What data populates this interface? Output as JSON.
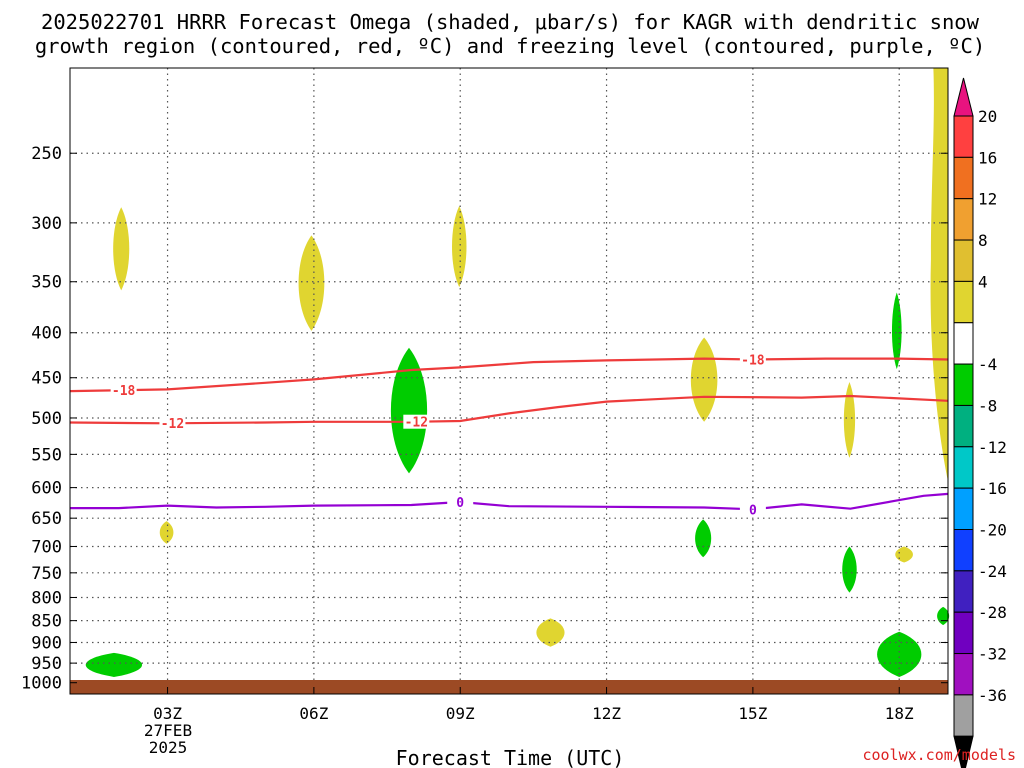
{
  "title_line1": "2025022701 HRRR Forecast Omega (shaded, μbar/s) for KAGR with dendritic snow",
  "title_line2": "growth region (contoured, red, ºC) and freezing level (contoured, purple, ºC)",
  "credit": "coolwx.com/models",
  "colors": {
    "ground": "#9c4a24",
    "red_contour": "#ee3b3b",
    "purple_contour": "#9400d3",
    "rising_green": "#00cc00",
    "sinking_yellow": "#e0d530",
    "grid": "#555555"
  },
  "chart_data": {
    "type": "time-height cross section",
    "xlabel": "Forecast Time (UTC)",
    "x_ticks": [
      "03Z",
      "06Z",
      "09Z",
      "12Z",
      "15Z",
      "18Z"
    ],
    "x_tick_hours": [
      3,
      6,
      9,
      12,
      15,
      18
    ],
    "x_range_hours": [
      1,
      19
    ],
    "x_date_labels": [
      "27FEB",
      "2025"
    ],
    "ylabel": "",
    "y_ticks": [
      250,
      300,
      350,
      400,
      450,
      500,
      550,
      600,
      650,
      700,
      750,
      800,
      850,
      900,
      950,
      1000
    ],
    "y_range_hpa": [
      200,
      1030
    ],
    "y_scale": "log-pressure",
    "grid": true,
    "colorbar": {
      "units": "μbar/s",
      "labels": [
        "20",
        "16",
        "12",
        "8",
        "4",
        "-4",
        "-8",
        "-12",
        "-16",
        "-20",
        "-24",
        "-28",
        "-32",
        "-36"
      ],
      "colors": [
        "#e8137f",
        "#ff4040",
        "#f07020",
        "#f0a030",
        "#e0bf30",
        "#e0d530",
        "#ffffff",
        "#00cc00",
        "#00b080",
        "#00c8c8",
        "#00a0ff",
        "#1040ff",
        "#4020c0",
        "#7000c0",
        "#a010c0",
        "#a0a0a0",
        "#000000"
      ]
    },
    "contours": [
      {
        "label": "-18",
        "color": "red",
        "points": [
          [
            1.0,
            466
          ],
          [
            3.0,
            464
          ],
          [
            5.0,
            456
          ],
          [
            6.0,
            452
          ],
          [
            8.0,
            441
          ],
          [
            9.0,
            438
          ],
          [
            10.5,
            432
          ],
          [
            12.0,
            430
          ],
          [
            14.0,
            428
          ],
          [
            15.0,
            429
          ],
          [
            16.5,
            428
          ],
          [
            18.0,
            428
          ],
          [
            19.0,
            429
          ]
        ],
        "label_hours": [
          2.1,
          15.0
        ]
      },
      {
        "label": "-12",
        "color": "red",
        "points": [
          [
            1.0,
            506
          ],
          [
            3.0,
            507
          ],
          [
            5.0,
            506
          ],
          [
            6.0,
            505
          ],
          [
            8.0,
            505
          ],
          [
            9.0,
            504
          ],
          [
            10.0,
            494
          ],
          [
            11.0,
            486
          ],
          [
            12.0,
            479
          ],
          [
            13.0,
            476
          ],
          [
            14.0,
            473
          ],
          [
            16.0,
            474
          ],
          [
            17.0,
            472
          ],
          [
            19.0,
            478
          ]
        ],
        "label_hours": [
          3.1,
          8.1
        ]
      },
      {
        "label": "0",
        "color": "purple",
        "points": [
          [
            1.0,
            633
          ],
          [
            2.0,
            633
          ],
          [
            3.0,
            629
          ],
          [
            4.0,
            632
          ],
          [
            5.0,
            631
          ],
          [
            6.0,
            629
          ],
          [
            8.0,
            628
          ],
          [
            9.0,
            623
          ],
          [
            10.0,
            630
          ],
          [
            12.0,
            631
          ],
          [
            14.0,
            632
          ],
          [
            15.0,
            635
          ],
          [
            16.0,
            627
          ],
          [
            17.0,
            634
          ],
          [
            18.0,
            620
          ],
          [
            18.5,
            613
          ],
          [
            19.0,
            610
          ]
        ],
        "label_hours": [
          9.0,
          15.0
        ]
      }
    ],
    "omega_regions": [
      {
        "sign": "positive",
        "min_ubar_s": 4,
        "hour": 2.05,
        "p_top": 288,
        "p_bot": 358,
        "half_width_hr": 0.2
      },
      {
        "sign": "positive",
        "min_ubar_s": 4,
        "hour": 5.95,
        "p_top": 310,
        "p_bot": 398,
        "half_width_hr": 0.32
      },
      {
        "sign": "positive",
        "min_ubar_s": 4,
        "hour": 8.98,
        "p_top": 287,
        "p_bot": 355,
        "half_width_hr": 0.18
      },
      {
        "sign": "positive",
        "min_ubar_s": 4,
        "hour": 2.98,
        "p_top": 655,
        "p_bot": 695,
        "half_width_hr": 0.17
      },
      {
        "sign": "negative",
        "min_ubar_s": -4,
        "hour": 7.95,
        "p_top": 416,
        "p_bot": 578,
        "half_width_hr": 0.45
      },
      {
        "sign": "positive",
        "min_ubar_s": 4,
        "hour": 14.0,
        "p_top": 405,
        "p_bot": 505,
        "half_width_hr": 0.33
      },
      {
        "sign": "negative",
        "min_ubar_s": -4,
        "hour": 13.98,
        "p_top": 652,
        "p_bot": 720,
        "half_width_hr": 0.2
      },
      {
        "sign": "positive",
        "min_ubar_s": 4,
        "hour": 16.98,
        "p_top": 455,
        "p_bot": 555,
        "half_width_hr": 0.14
      },
      {
        "sign": "negative",
        "min_ubar_s": -4,
        "hour": 17.95,
        "p_top": 360,
        "p_bot": 440,
        "half_width_hr": 0.12
      },
      {
        "sign": "negative",
        "min_ubar_s": -4,
        "hour": 16.98,
        "p_top": 700,
        "p_bot": 790,
        "half_width_hr": 0.18
      },
      {
        "sign": "positive",
        "min_ubar_s": 4,
        "hour": 18.1,
        "p_top": 700,
        "p_bot": 730,
        "half_width_hr": 0.22
      },
      {
        "sign": "positive",
        "min_ubar_s": 4,
        "hour": 10.85,
        "p_top": 845,
        "p_bot": 910,
        "half_width_hr": 0.35
      },
      {
        "sign": "negative",
        "min_ubar_s": -4,
        "hour": 1.9,
        "p_top": 925,
        "p_bot": 985,
        "half_width_hr": 0.7
      },
      {
        "sign": "negative",
        "min_ubar_s": -4,
        "hour": 18.0,
        "p_top": 875,
        "p_bot": 985,
        "half_width_hr": 0.55
      },
      {
        "sign": "negative",
        "min_ubar_s": -4,
        "hour": 18.9,
        "p_top": 820,
        "p_bot": 860,
        "half_width_hr": 0.15
      }
    ]
  }
}
